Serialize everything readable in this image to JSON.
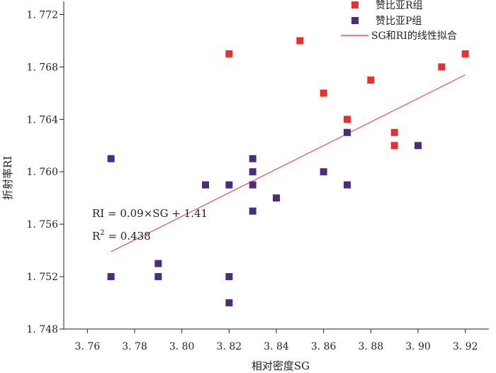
{
  "chart_data": {
    "type": "scatter",
    "xlabel": "相对密度SG",
    "ylabel": "折射率RI",
    "xlim": [
      3.75,
      3.93
    ],
    "ylim": [
      1.748,
      1.773
    ],
    "x_ticks": [
      3.76,
      3.78,
      3.8,
      3.82,
      3.84,
      3.86,
      3.88,
      3.9,
      3.92
    ],
    "x_tick_labels": [
      "3. 76",
      "3. 78",
      "3. 80",
      "3. 82",
      "3. 84",
      "3. 86",
      "3. 88",
      "3. 90",
      "3. 92"
    ],
    "y_ticks": [
      1.748,
      1.752,
      1.756,
      1.76,
      1.764,
      1.768,
      1.772
    ],
    "y_tick_labels": [
      "1. 748",
      "1. 752",
      "1. 756",
      "1. 760",
      "1. 764",
      "1. 768",
      "1. 772"
    ],
    "grid": false,
    "legend_position": "top-right",
    "series": [
      {
        "name": "赞比亚R组",
        "color": "#e8302f",
        "marker": "square",
        "points": [
          [
            3.82,
            1.769
          ],
          [
            3.85,
            1.77
          ],
          [
            3.86,
            1.766
          ],
          [
            3.87,
            1.764
          ],
          [
            3.88,
            1.767
          ],
          [
            3.89,
            1.763
          ],
          [
            3.89,
            1.762
          ],
          [
            3.91,
            1.768
          ],
          [
            3.92,
            1.769
          ]
        ]
      },
      {
        "name": "赞比亚P组",
        "color": "#4a2d7f",
        "marker": "square",
        "points": [
          [
            3.77,
            1.761
          ],
          [
            3.77,
            1.752
          ],
          [
            3.79,
            1.753
          ],
          [
            3.79,
            1.752
          ],
          [
            3.81,
            1.759
          ],
          [
            3.82,
            1.759
          ],
          [
            3.82,
            1.752
          ],
          [
            3.82,
            1.75
          ],
          [
            3.83,
            1.761
          ],
          [
            3.83,
            1.76
          ],
          [
            3.83,
            1.759
          ],
          [
            3.83,
            1.757
          ],
          [
            3.84,
            1.758
          ],
          [
            3.86,
            1.76
          ],
          [
            3.87,
            1.763
          ],
          [
            3.87,
            1.759
          ],
          [
            3.9,
            1.762
          ]
        ]
      }
    ],
    "fit_line": {
      "name": "SG和RI的线性拟合",
      "color": "#e8302f",
      "x": [
        3.77,
        3.92
      ],
      "y": [
        1.7539,
        1.7674
      ]
    },
    "annotations": {
      "equation": "RI = 0.09×SG + 1.41",
      "r_squared_label": "R",
      "r_squared_sup": "2",
      "r_squared_value": " = 0.438"
    }
  }
}
